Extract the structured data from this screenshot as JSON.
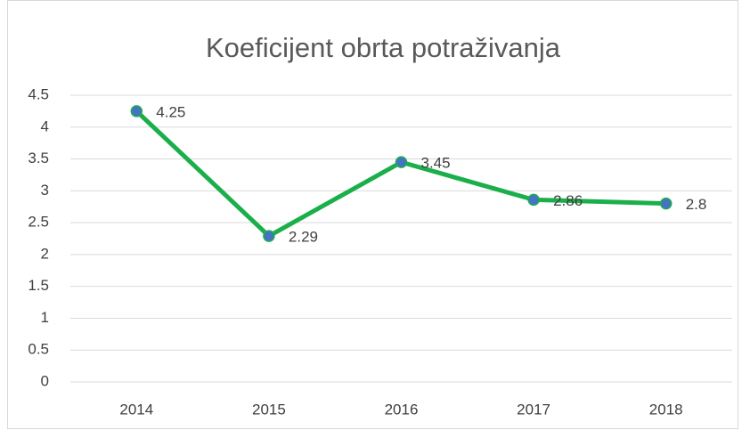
{
  "chart_data": {
    "type": "line",
    "title": "Koeficijent obrta potraživanja",
    "categories": [
      "2014",
      "2015",
      "2016",
      "2017",
      "2018"
    ],
    "values": [
      4.25,
      2.29,
      3.45,
      2.86,
      2.8
    ],
    "color": "#1aaf4b",
    "marker_color": "#4472c4",
    "ylim": [
      0,
      4.5
    ],
    "yticks": [
      0,
      0.5,
      1,
      1.5,
      2,
      2.5,
      3,
      3.5,
      4,
      4.5
    ],
    "grid": true,
    "data_labels": true
  }
}
